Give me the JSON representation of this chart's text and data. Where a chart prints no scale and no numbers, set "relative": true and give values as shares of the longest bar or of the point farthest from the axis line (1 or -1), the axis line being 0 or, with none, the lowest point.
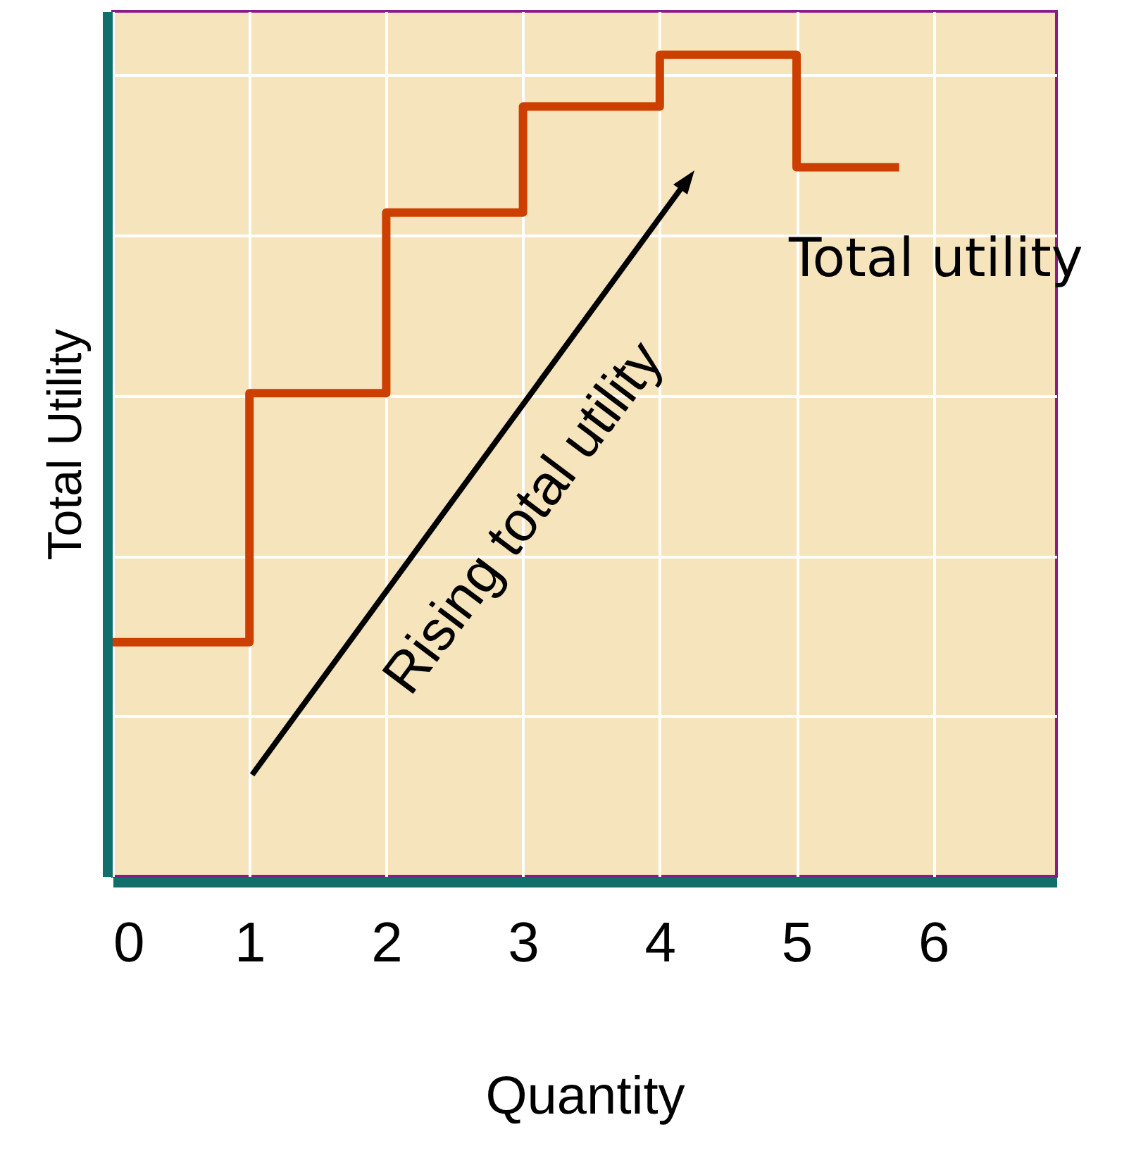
{
  "chart_data": {
    "type": "step",
    "relative": true,
    "xlabel": "Quantity",
    "ylabel": "Total Utility",
    "x": [
      0,
      1,
      2,
      3,
      4,
      5,
      5.75
    ],
    "series": [
      {
        "name": "Total utility",
        "color": "#cc3f00",
        "values": [
          0.285,
          0.588,
          0.808,
          0.937,
          1,
          0.863,
          0.863
        ]
      }
    ],
    "xlim": [
      0,
      6.9
    ],
    "xticks": [
      0,
      1,
      2,
      3,
      4,
      5,
      6
    ],
    "grid": true,
    "annotations": [
      "Rising total utility"
    ]
  }
}
